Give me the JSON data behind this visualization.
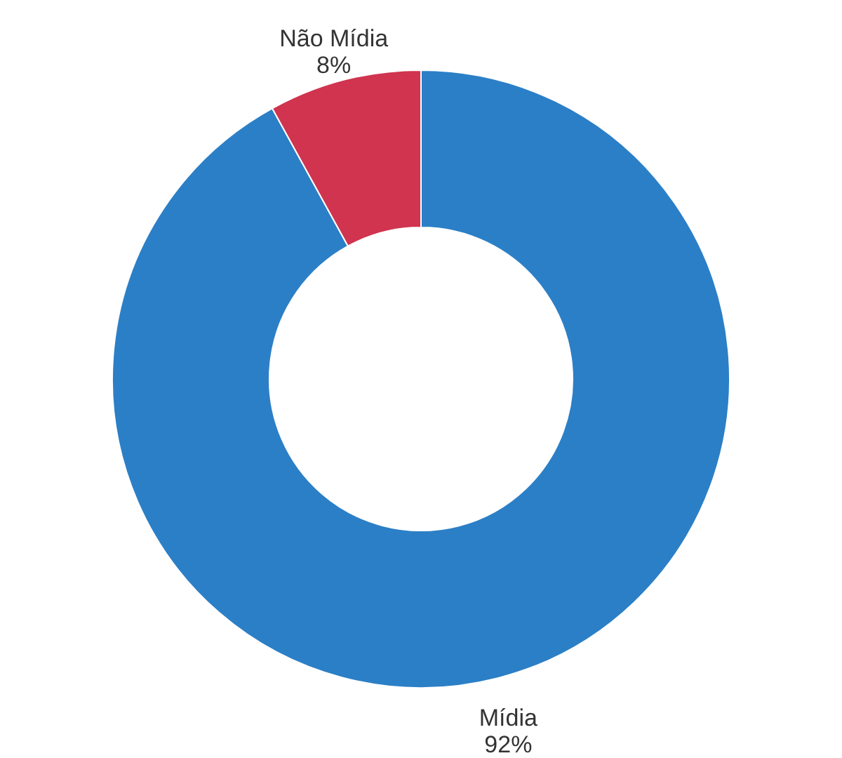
{
  "chart_data": {
    "type": "donut",
    "categories": [
      "Mídia",
      "Não Mídia"
    ],
    "values": [
      92,
      8
    ],
    "value_labels": [
      "92%",
      "8%"
    ],
    "colors": [
      "#2b7fc6",
      "#d0344f"
    ]
  }
}
